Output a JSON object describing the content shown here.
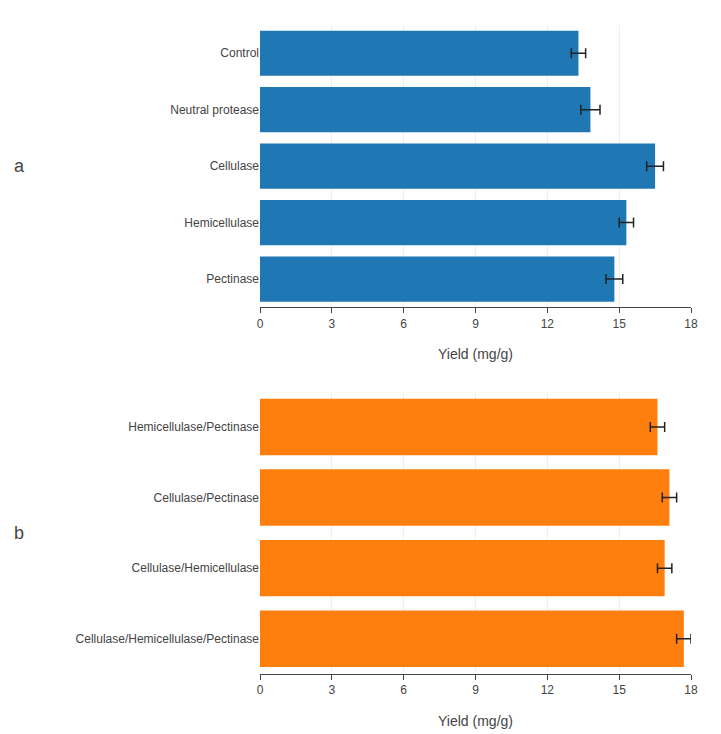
{
  "chart_data": [
    {
      "type": "bar",
      "orientation": "horizontal",
      "title": "a",
      "categories": [
        "Control",
        "Neutral protease",
        "Cellulase",
        "Hemicellulase",
        "Pectinase"
      ],
      "values": [
        13.3,
        13.8,
        16.5,
        15.3,
        14.8
      ],
      "errors": [
        0.3,
        0.4,
        0.35,
        0.3,
        0.35
      ],
      "xlabel": "Yield (mg/g)",
      "xlim": [
        0,
        18
      ],
      "xticks": [
        0,
        3,
        6,
        9,
        12,
        15,
        18
      ]
    },
    {
      "type": "bar",
      "orientation": "horizontal",
      "title": "b",
      "categories": [
        "Hemicellulase/Pectinase",
        "Cellulase/Pectinase",
        "Cellulase/Hemicellulase",
        "Cellulase/Hemicellulase/Pectinase"
      ],
      "values": [
        16.6,
        17.1,
        16.9,
        17.7
      ],
      "errors": [
        0.3,
        0.3,
        0.3,
        0.3
      ],
      "xlabel": "Yield (mg/g)",
      "xlim": [
        0,
        18
      ],
      "xticks": [
        0,
        3,
        6,
        9,
        12,
        15,
        18
      ]
    }
  ]
}
